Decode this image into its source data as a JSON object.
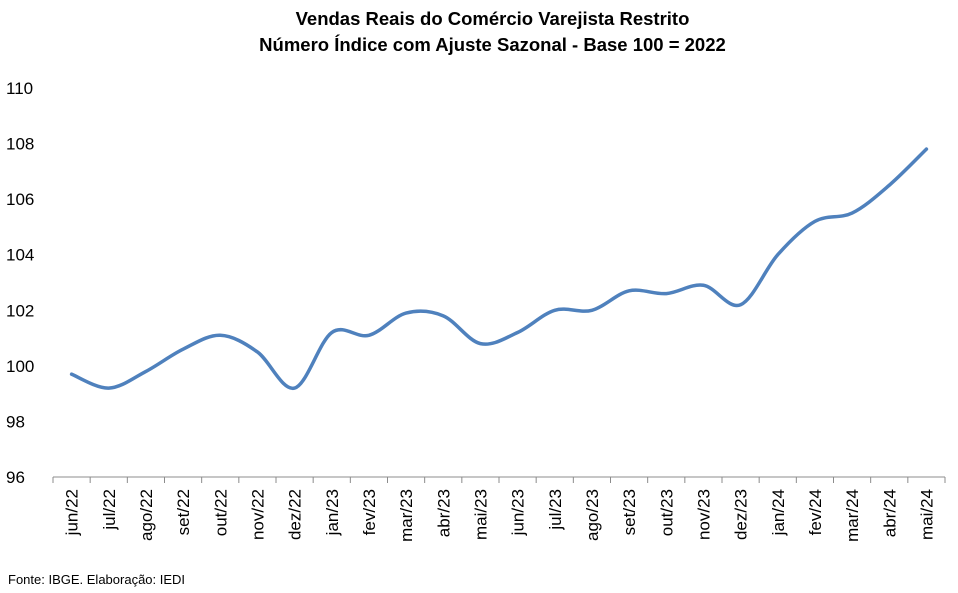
{
  "chart_data": {
    "type": "line",
    "title": "Vendas Reais do Comércio Varejista Restrito",
    "subtitle": "Número Índice com Ajuste Sazonal - Base 100 = 2022",
    "xlabel": "",
    "ylabel": "",
    "ylim": [
      96,
      110
    ],
    "yticks": [
      96,
      98,
      100,
      102,
      104,
      106,
      108,
      110
    ],
    "grid": false,
    "legend": "none",
    "line_color": "#4F81BD",
    "categories": [
      "jun/22",
      "jul/22",
      "ago/22",
      "set/22",
      "out/22",
      "nov/22",
      "dez/22",
      "jan/23",
      "fev/23",
      "mar/23",
      "abr/23",
      "mai/23",
      "jun/23",
      "jul/23",
      "ago/23",
      "set/23",
      "out/23",
      "nov/23",
      "dez/23",
      "jan/24",
      "fev/24",
      "mar/24",
      "abr/24",
      "mai/24"
    ],
    "series": [
      {
        "name": "",
        "values": [
          99.7,
          99.2,
          99.8,
          100.6,
          101.1,
          100.5,
          99.2,
          101.2,
          101.1,
          101.9,
          101.8,
          100.8,
          101.2,
          102.0,
          102.0,
          102.7,
          102.6,
          102.9,
          102.2,
          104.0,
          105.2,
          105.5,
          106.5,
          107.8
        ]
      }
    ]
  },
  "source": "Fonte: IBGE. Elaboração: IEDI"
}
